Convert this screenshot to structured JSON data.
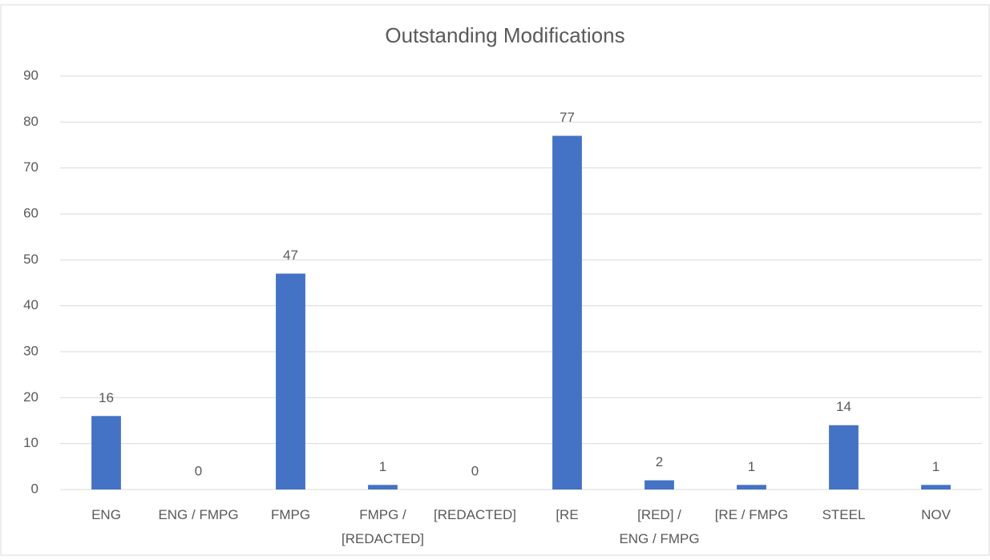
{
  "chart_data": {
    "type": "bar",
    "title": "Outstanding Modifications",
    "categories": [
      "ENG",
      "ENG / FMPG",
      "FMPG",
      "FMPG / [REDACTED]",
      "[REDACTED]",
      "[RE",
      "[RED] / ENG / FMPG",
      "[RE / FMPG",
      "STEEL",
      "NOV"
    ],
    "values": [
      16,
      0,
      47,
      1,
      0,
      77,
      2,
      1,
      14,
      1
    ],
    "color": "#4472c4",
    "ylim": [
      0,
      90
    ],
    "yticks": [
      0,
      10,
      20,
      30,
      40,
      50,
      60,
      70,
      80,
      90
    ],
    "grid": true,
    "data_labels": true
  }
}
